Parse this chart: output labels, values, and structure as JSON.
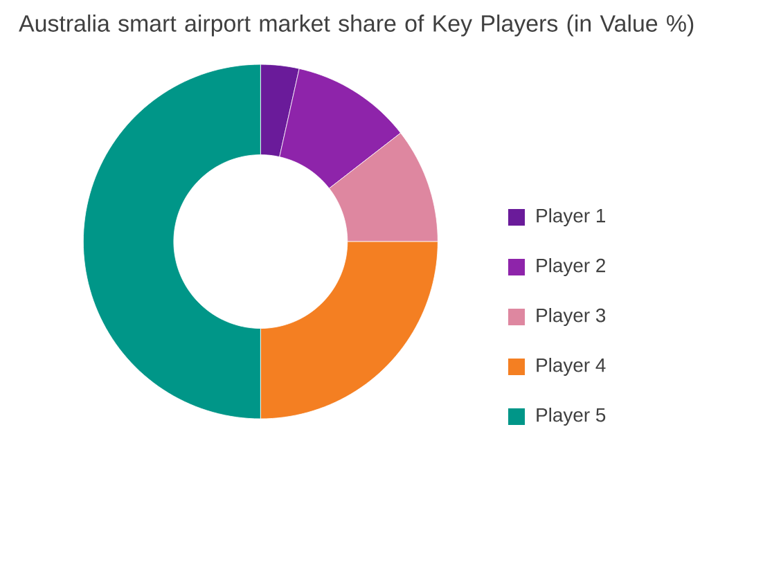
{
  "chart_data": {
    "type": "donut",
    "title": "Australia smart airport market share of Key Players (in Value %)",
    "categories": [
      "Player 1",
      "Player 2",
      "Player 3",
      "Player 4",
      "Player 5"
    ],
    "values": [
      3.5,
      11,
      10.5,
      25,
      50
    ],
    "colors": [
      "#6a1b9a",
      "#8e24aa",
      "#de87a0",
      "#f47f22",
      "#009688"
    ],
    "legend": "right"
  }
}
